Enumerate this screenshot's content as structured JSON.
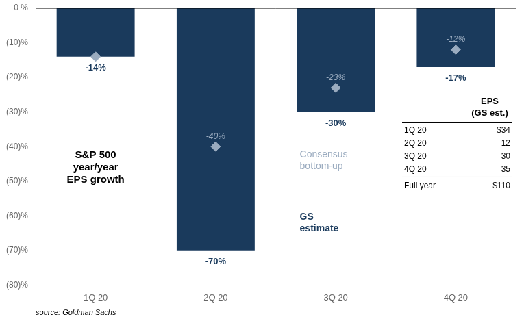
{
  "chart_data": {
    "type": "bar",
    "categories": [
      "1Q 20",
      "2Q 20",
      "3Q 20",
      "4Q 20"
    ],
    "series": [
      {
        "name": "GS\nestimate",
        "type": "bar",
        "color": "#1a3a5c",
        "values": [
          -14,
          -70,
          -30,
          -17
        ],
        "value_labels": [
          "-14%",
          "-70%",
          "-30%",
          "-17%"
        ]
      },
      {
        "name": "Consensus\nbottom-up",
        "type": "scatter",
        "marker": "diamond",
        "color": "#9aabbf",
        "values": [
          -14,
          -40,
          -23,
          -12
        ],
        "value_labels": [
          null,
          "-40%",
          "-23%",
          "-12%"
        ]
      }
    ],
    "ylim": [
      -80,
      0
    ],
    "yticks": [
      {
        "value": 0,
        "label": "0 %"
      },
      {
        "value": -10,
        "label": "(10)%"
      },
      {
        "value": -20,
        "label": "(20)%"
      },
      {
        "value": -30,
        "label": "(30)%"
      },
      {
        "value": -40,
        "label": "(40)%"
      },
      {
        "value": -50,
        "label": "(50)%"
      },
      {
        "value": -60,
        "label": "(60)%"
      },
      {
        "value": -70,
        "label": "(70)%"
      },
      {
        "value": -80,
        "label": "(80)%"
      }
    ],
    "grid": false,
    "data_labels": true,
    "annotations": [
      "S&P 500\nyear/year\nEPS growth"
    ],
    "table": {
      "header": [
        "EPS",
        "(GS est.)"
      ],
      "rows": [
        [
          "1Q 20",
          "$34"
        ],
        [
          "2Q 20",
          "12"
        ],
        [
          "3Q 20",
          "30"
        ],
        [
          "4Q 20",
          "35"
        ]
      ],
      "footer": [
        "Full year",
        "$110"
      ]
    },
    "source": "source: Goldman Sachs"
  }
}
